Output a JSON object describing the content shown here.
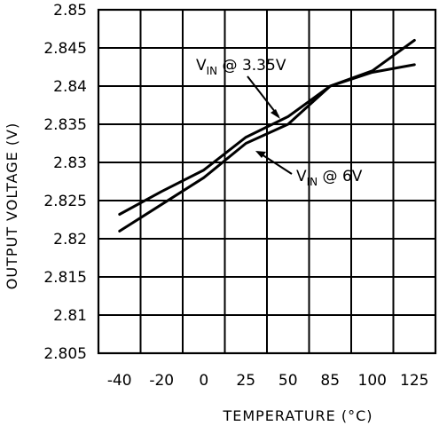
{
  "chart_data": {
    "type": "line",
    "xlabel": "TEMPERATURE (°C)",
    "ylabel": "OUTPUT VOLTAGE (V)",
    "categories": [
      "-40",
      "-20",
      "0",
      "25",
      "50",
      "85",
      "100",
      "125"
    ],
    "y_ticks": [
      "2.85",
      "2.845",
      "2.84",
      "2.835",
      "2.83",
      "2.825",
      "2.82",
      "2.815",
      "2.81",
      "2.805"
    ],
    "ylim": [
      2.805,
      2.85
    ],
    "grid": true,
    "series": [
      {
        "label_main": "V",
        "label_sub": "IN",
        "label_rest": " @ 3.35V",
        "values": [
          2.821,
          2.8245,
          2.828,
          2.8325,
          2.835,
          2.84,
          2.842,
          2.846
        ]
      },
      {
        "label_main": "V",
        "label_sub": "IN",
        "label_rest": " @ 6V",
        "values": [
          2.8232,
          2.8262,
          2.829,
          2.8333,
          2.836,
          2.84,
          2.8418,
          2.8428
        ]
      }
    ]
  }
}
